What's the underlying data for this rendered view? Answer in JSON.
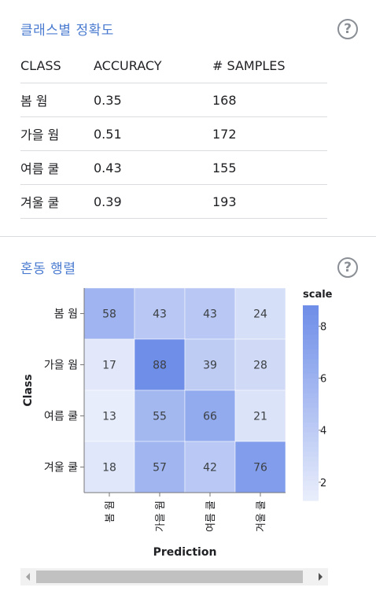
{
  "accuracy_section": {
    "title": "클래스별 정확도",
    "help_icon": "question-circle-icon",
    "columns": [
      "CLASS",
      "ACCURACY",
      "# SAMPLES"
    ],
    "rows": [
      {
        "class": "봄 웜",
        "accuracy": "0.35",
        "samples": "168"
      },
      {
        "class": "가을 웜",
        "accuracy": "0.51",
        "samples": "172"
      },
      {
        "class": "여름 쿨",
        "accuracy": "0.43",
        "samples": "155"
      },
      {
        "class": "겨울 쿨",
        "accuracy": "0.39",
        "samples": "193"
      }
    ]
  },
  "confusion_section": {
    "title": "혼동 행렬",
    "help_icon": "question-circle-icon"
  },
  "chart_data": {
    "type": "heatmap",
    "title": "",
    "xlabel": "Prediction",
    "ylabel": "Class",
    "rows": [
      "봄 웜",
      "가을 웜",
      "여름 쿨",
      "겨울 쿨"
    ],
    "columns": [
      "봄 웜",
      "가을 웜",
      "여름 쿨",
      "겨울 쿨"
    ],
    "values": [
      [
        58,
        43,
        43,
        24
      ],
      [
        17,
        88,
        39,
        28
      ],
      [
        13,
        55,
        66,
        21
      ],
      [
        18,
        57,
        42,
        76
      ]
    ],
    "legend": {
      "title": "scale",
      "ticks": [
        "8",
        "6",
        "4",
        "2"
      ],
      "min": 13,
      "max": 88
    },
    "color_low": "#e8edfb",
    "color_high": "#6f8ee8"
  },
  "scrollbar": {
    "left_arrow": "chevron-left-icon",
    "right_arrow": "chevron-right-icon"
  }
}
